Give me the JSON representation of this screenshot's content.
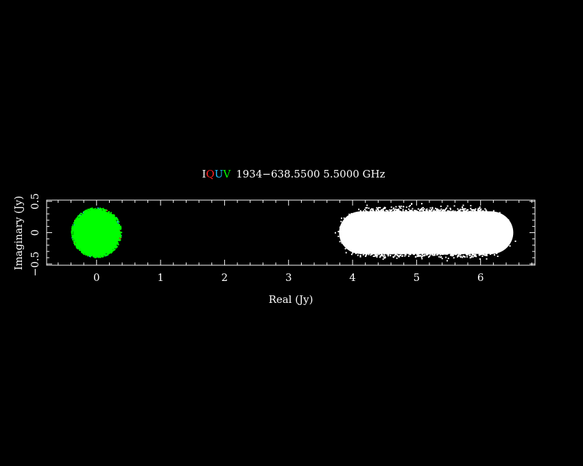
{
  "chart_data": {
    "type": "scatter",
    "title": "1934−638.5500 5.5000 GHz",
    "title_stokes": [
      {
        "label": "I",
        "color": "#ffffff"
      },
      {
        "label": "Q",
        "color": "#ff2020"
      },
      {
        "label": "U",
        "color": "#20c0ff"
      },
      {
        "label": "V",
        "color": "#00ff00"
      }
    ],
    "xlabel": "Real (Jy)",
    "ylabel": "Imaginary (Jy)",
    "xlim": [
      -0.78,
      6.85
    ],
    "ylim": [
      -0.52,
      0.52
    ],
    "x_ticks": [
      0,
      1,
      2,
      3,
      4,
      5,
      6
    ],
    "x_tick_labels": [
      "0",
      "1",
      "2",
      "3",
      "4",
      "5",
      "6"
    ],
    "y_ticks": [
      0.5,
      0,
      -0.5
    ],
    "y_tick_labels": [
      "0.5",
      "0",
      "−0.5"
    ],
    "grid": false,
    "background": "#000000",
    "axis_color": "#ffffff",
    "series": [
      {
        "name": "I",
        "color": "#ffffff",
        "shape": "elongated-cloud",
        "x_range": [
          3.8,
          6.5
        ],
        "y_range": [
          -0.37,
          0.37
        ],
        "n": 2600
      },
      {
        "name": "Q",
        "color": "#ff2020",
        "shape": "disk",
        "center": [
          0,
          0
        ],
        "radius": 0.42,
        "n": 40
      },
      {
        "name": "U",
        "color": "#20c0ff",
        "shape": "disk",
        "center": [
          0,
          0
        ],
        "radius": 0.42,
        "n": 60
      },
      {
        "name": "V",
        "color": "#00ff00",
        "shape": "disk",
        "center": [
          0,
          0
        ],
        "radius": 0.42,
        "n": 700
      }
    ]
  }
}
